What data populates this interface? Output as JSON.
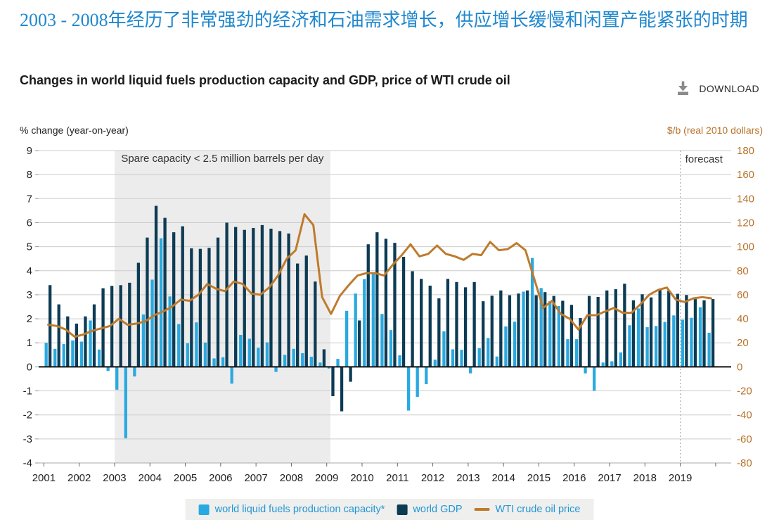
{
  "header": {
    "title": "2003 - 2008年经历了非常强劲的经济和石油需求增长，供应增长缓慢和闲置产能紧张的时期",
    "subtitle": "Changes in world liquid fuels production capacity and GDP, price of WTI crude oil",
    "download_label": "DOWNLOAD"
  },
  "axes": {
    "left_unit_label": "% change (year-on-year)",
    "right_unit_label": "$/b (real 2010 dollars)",
    "left_min": -4,
    "left_max": 9,
    "left_step": 1,
    "right_min": -80,
    "right_max": 180,
    "right_step": 20,
    "year_labels": [
      "2001",
      "2002",
      "2003",
      "2004",
      "2005",
      "2006",
      "2007",
      "2008",
      "2009",
      "2010",
      "2011",
      "2012",
      "2013",
      "2014",
      "2015",
      "2016",
      "2017",
      "2018",
      "2019"
    ]
  },
  "annotations": {
    "spare_capacity_label": "Spare capacity < 2.5 million barrels per day",
    "forecast_label": "forecast",
    "shaded_from": 2003.0,
    "shaded_to": 2009.1,
    "forecast_start": 2019.0
  },
  "legend": {
    "items": [
      {
        "label": "world liquid fuels production capacity*",
        "color": "#29A9E1",
        "type": "bar"
      },
      {
        "label": "world GDP",
        "color": "#0D3B54",
        "type": "bar"
      },
      {
        "label": "WTI crude oil price",
        "color": "#BE7B2C",
        "type": "line"
      }
    ]
  },
  "colors": {
    "title_blue": "#2088CE",
    "capacity_bar": "#29A9E1",
    "gdp_bar": "#0D3B54",
    "wti_line": "#BE7B2C",
    "right_axis_text": "#B5722A",
    "grid": "#cccccc",
    "zero_line": "#111111",
    "shade": "#edecec",
    "forecast_dash": "#b3b3b3",
    "legend_bg": "#efefee",
    "legend_text": "#2196D5",
    "download_gray": "#8a8a8a"
  },
  "chart_data": {
    "type": "combo",
    "x_start_year": 2001,
    "x_step_years": 0.25,
    "quarters": 76,
    "left_axis_range": [
      -4,
      9
    ],
    "right_axis_range": [
      -80,
      180
    ],
    "grid": true,
    "legend_position": "bottom",
    "series": [
      {
        "name": "world liquid fuels production capacity*",
        "type": "bar",
        "axis": "left",
        "color": "#29A9E1",
        "values": [
          1.0,
          0.75,
          0.95,
          1.1,
          1.05,
          1.93,
          0.72,
          -0.17,
          -0.95,
          -2.97,
          -0.4,
          2.18,
          3.63,
          5.35,
          2.93,
          1.78,
          0.98,
          1.85,
          1.01,
          0.35,
          0.4,
          -0.7,
          1.33,
          1.17,
          0.8,
          1.02,
          -0.21,
          0.5,
          0.75,
          0.57,
          0.42,
          0.18,
          -0.07,
          0.33,
          2.33,
          3.05,
          3.65,
          3.88,
          2.2,
          1.53,
          0.48,
          -1.82,
          -1.25,
          -0.72,
          0.3,
          1.48,
          0.73,
          0.71,
          -0.27,
          0.78,
          1.2,
          0.43,
          1.68,
          1.88,
          3.13,
          4.53,
          3.28,
          2.73,
          2.53,
          1.15,
          1.15,
          -0.27,
          -0.99,
          0.18,
          0.23,
          0.6,
          1.73,
          2.43,
          1.65,
          1.7,
          1.87,
          2.14,
          1.96,
          2.04,
          2.48,
          1.42
        ]
      },
      {
        "name": "world GDP",
        "type": "bar",
        "axis": "left",
        "color": "#0D3B54",
        "values": [
          3.4,
          2.6,
          2.1,
          1.8,
          2.1,
          2.6,
          3.27,
          3.37,
          3.4,
          3.5,
          4.33,
          5.38,
          6.7,
          6.2,
          5.6,
          5.85,
          4.93,
          4.91,
          4.95,
          5.38,
          6.0,
          5.82,
          5.7,
          5.78,
          5.9,
          5.75,
          5.65,
          5.55,
          4.3,
          4.63,
          3.55,
          0.73,
          -1.22,
          -1.85,
          -0.62,
          1.93,
          5.1,
          5.6,
          5.33,
          5.16,
          4.58,
          3.98,
          3.66,
          3.38,
          2.85,
          3.66,
          3.53,
          3.31,
          3.53,
          2.73,
          2.96,
          3.18,
          2.98,
          3.05,
          3.18,
          2.98,
          3.11,
          2.95,
          2.75,
          2.58,
          2.03,
          2.95,
          2.91,
          3.18,
          3.23,
          3.46,
          2.77,
          3.02,
          2.89,
          3.24,
          3.17,
          3.04,
          2.99,
          2.82,
          2.77,
          2.82
        ]
      },
      {
        "name": "WTI crude oil price",
        "type": "line",
        "axis": "right",
        "color": "#BE7B2C",
        "values": [
          35,
          34,
          31,
          25,
          27,
          30,
          32,
          34,
          40,
          35,
          36,
          38,
          43,
          46,
          50,
          56,
          55,
          60,
          69,
          65,
          63,
          71,
          69,
          61,
          60,
          66,
          76,
          90,
          97,
          127,
          118,
          58,
          44,
          59,
          68,
          76,
          78,
          78,
          76,
          85,
          93,
          102,
          92,
          94,
          101,
          94,
          92,
          89,
          94,
          93,
          104,
          97,
          98,
          103,
          97,
          73,
          49,
          55,
          44,
          40,
          31,
          43,
          43,
          46,
          49,
          45,
          45,
          52,
          60,
          64,
          66,
          56,
          54,
          57,
          58,
          57
        ]
      }
    ]
  }
}
